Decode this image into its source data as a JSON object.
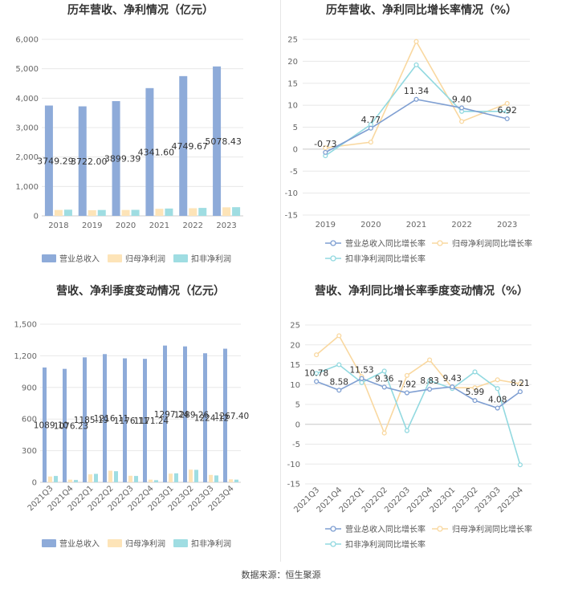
{
  "footer": "数据来源：恒生聚源",
  "colors": {
    "revenue": "#8eabd9",
    "net_profit": "#fde4b8",
    "deducted_profit": "#9fdde2",
    "revenue_line": "#7f9fd2",
    "net_line": "#f9d8a0",
    "deducted_line": "#92d9e0",
    "grid": "#e8e8e8",
    "axis_text": "#666666",
    "title": "#333333"
  },
  "chart_data": [
    {
      "type": "bar",
      "title": "历年营收、净利情况（亿元）",
      "categories": [
        "2018",
        "2019",
        "2020",
        "2021",
        "2022",
        "2023"
      ],
      "ylim": [
        0,
        6000
      ],
      "yticks": [
        "0",
        "1,000",
        "2,000",
        "3,000",
        "4,000",
        "5,000",
        "6,000"
      ],
      "series": [
        {
          "name": "营业总收入",
          "values": [
            3749.29,
            3722.0,
            3899.39,
            4341.6,
            4749.67,
            5078.43
          ],
          "labels": [
            "3749.29",
            "3722.00",
            "3899.39",
            "4341.60",
            "4749.67",
            "5078.43"
          ]
        },
        {
          "name": "归母净利润",
          "values": [
            200,
            190,
            200,
            240,
            260,
            290
          ]
        },
        {
          "name": "扣非净利润",
          "values": [
            210,
            200,
            205,
            250,
            270,
            295
          ]
        }
      ]
    },
    {
      "type": "line",
      "title": "历年营收、净利同比增长率情况（%）",
      "categories": [
        "2019",
        "2020",
        "2021",
        "2022",
        "2023"
      ],
      "ylim": [
        -15,
        25
      ],
      "yticks": [
        "-15",
        "-10",
        "-5",
        "0",
        "5",
        "10",
        "15",
        "20",
        "25"
      ],
      "series": [
        {
          "name": "营业总收入同比增长率",
          "values": [
            -0.73,
            4.77,
            11.34,
            9.4,
            6.92
          ],
          "labels": [
            "-0.73",
            "4.77",
            "11.34",
            "9.40",
            "6.92"
          ]
        },
        {
          "name": "归母净利润同比增长率",
          "values": [
            0.3,
            1.6,
            24.5,
            6.3,
            10.4
          ]
        },
        {
          "name": "扣非净利润同比增长率",
          "values": [
            -1.5,
            5.6,
            19.2,
            8.6,
            8.6
          ]
        }
      ]
    },
    {
      "type": "bar",
      "title": "营收、净利季度变动情况（亿元）",
      "categories": [
        "2021Q3",
        "2021Q4",
        "2022Q1",
        "2022Q2",
        "2022Q3",
        "2022Q4",
        "2023Q1",
        "2023Q2",
        "2023Q3",
        "2023Q4"
      ],
      "ylim": [
        0,
        1500
      ],
      "yticks": [
        "0",
        "300",
        "600",
        "900",
        "1,200",
        "1,500"
      ],
      "series": [
        {
          "name": "营业总收入",
          "values": [
            1089.1,
            1076.23,
            1185.19,
            1216.11,
            1176.11,
            1171.24,
            1297.24,
            1289.26,
            1224.12,
            1267.4
          ],
          "labels": [
            "1089.10",
            "1076.23",
            "1185.19",
            "1216.11",
            "1176.11",
            "1171.24",
            "1297.24",
            "1289.26",
            "1224.12",
            "1267.40"
          ]
        },
        {
          "name": "归母净利润",
          "values": [
            55,
            25,
            75,
            110,
            62,
            25,
            82,
            120,
            70,
            28
          ]
        },
        {
          "name": "扣非净利润",
          "values": [
            60,
            22,
            80,
            105,
            60,
            20,
            85,
            118,
            65,
            25
          ]
        }
      ]
    },
    {
      "type": "line",
      "title": "营收、净利同比增长率季度变动情况（%）",
      "categories": [
        "2021Q3",
        "2021Q4",
        "2022Q1",
        "2022Q2",
        "2022Q3",
        "2022Q4",
        "2023Q1",
        "2023Q2",
        "2023Q3",
        "2023Q4"
      ],
      "ylim": [
        -15,
        25
      ],
      "yticks": [
        "-15",
        "-10",
        "-5",
        "0",
        "5",
        "10",
        "15",
        "20",
        "25"
      ],
      "series": [
        {
          "name": "营业总收入同比增长率",
          "values": [
            10.78,
            8.58,
            11.53,
            9.36,
            7.92,
            8.83,
            9.43,
            5.99,
            4.08,
            8.21
          ],
          "labels": [
            "10.78",
            "8.58",
            "11.53",
            "9.36",
            "7.92",
            "8.83",
            "9.43",
            "5.99",
            "4.08",
            "8.21"
          ]
        },
        {
          "name": "归母净利润同比增长率",
          "values": [
            17.5,
            22.3,
            12.0,
            -2.2,
            12.3,
            16.2,
            9.2,
            9.2,
            11.2,
            10.2
          ]
        },
        {
          "name": "扣非净利润同比增长率",
          "values": [
            12.8,
            15.0,
            10.5,
            13.4,
            -1.6,
            11.0,
            9.0,
            13.2,
            9.0,
            -10.2
          ]
        }
      ]
    }
  ]
}
